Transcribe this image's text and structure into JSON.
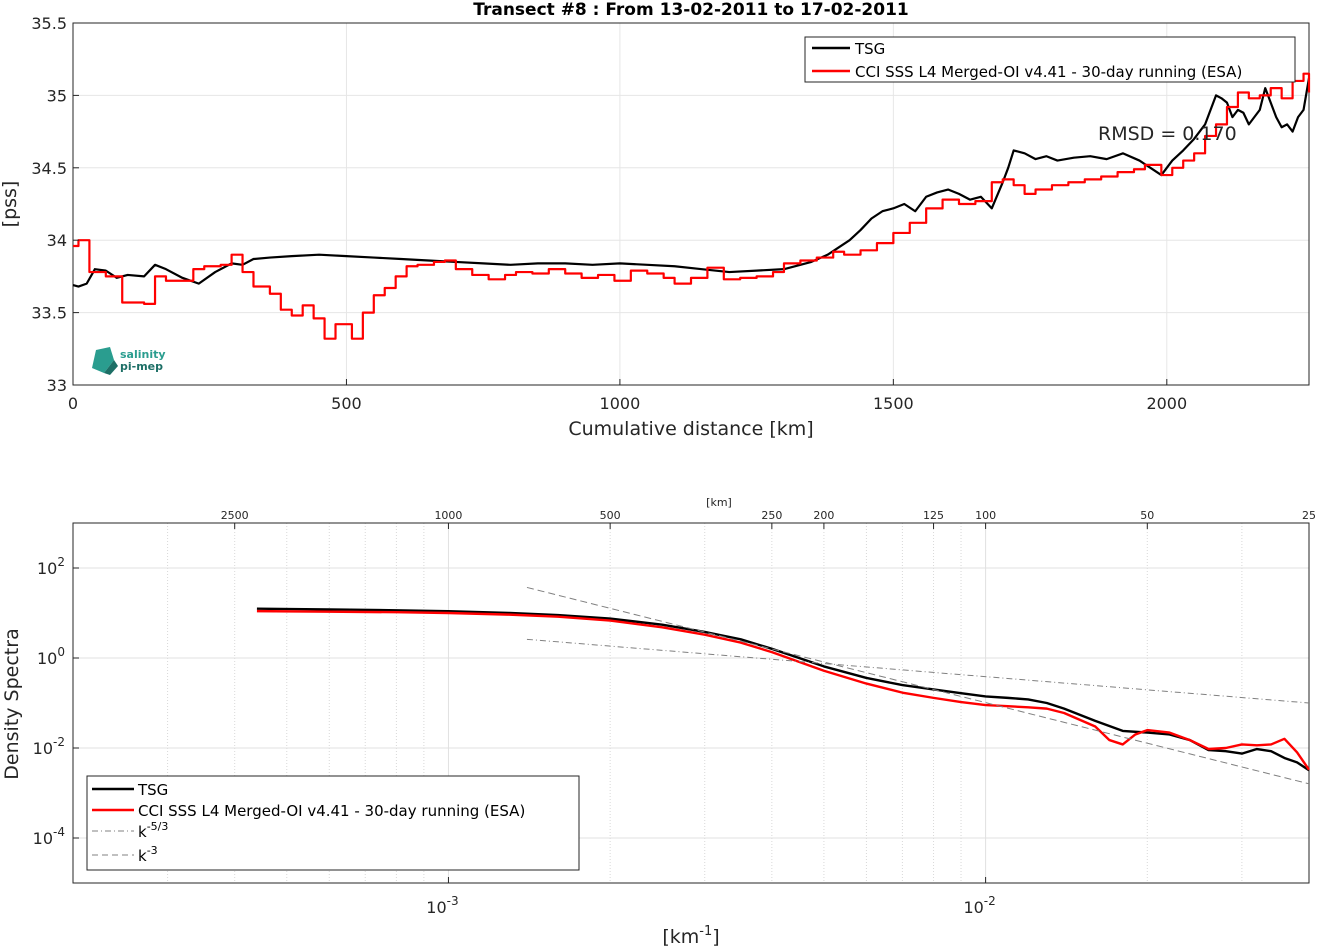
{
  "chart_data": [
    {
      "type": "line",
      "title": "Transect #8 : From 13-02-2011 to 17-02-2011",
      "xlabel": "Cumulative distance [km]",
      "ylabel": "[pss]",
      "xlim": [
        0,
        2260
      ],
      "ylim": [
        33,
        35.5
      ],
      "xticks": [
        "0",
        "500",
        "1000",
        "1500",
        "2000"
      ],
      "yticks": [
        "33",
        "33.5",
        "34",
        "34.5",
        "35",
        "35.5"
      ],
      "grid": true,
      "legend_position": "top-right",
      "annotation": "RMSD = 0.170",
      "logo": "salinity pi-mep",
      "series": [
        {
          "name": "TSG",
          "color": "#000000",
          "x": [
            0,
            10,
            25,
            40,
            60,
            80,
            100,
            130,
            150,
            170,
            200,
            230,
            260,
            290,
            310,
            330,
            360,
            400,
            450,
            500,
            550,
            600,
            650,
            700,
            750,
            800,
            850,
            900,
            950,
            1000,
            1050,
            1100,
            1150,
            1200,
            1250,
            1300,
            1350,
            1380,
            1400,
            1420,
            1440,
            1460,
            1480,
            1500,
            1520,
            1540,
            1560,
            1580,
            1600,
            1620,
            1640,
            1660,
            1680,
            1700,
            1710,
            1720,
            1740,
            1760,
            1780,
            1800,
            1830,
            1860,
            1890,
            1920,
            1950,
            1970,
            1990,
            2010,
            2030,
            2050,
            2070,
            2080,
            2090,
            2100,
            2110,
            2120,
            2130,
            2140,
            2150,
            2160,
            2170,
            2180,
            2190,
            2200,
            2210,
            2220,
            2230,
            2240,
            2250,
            2260
          ],
          "y": [
            33.69,
            33.68,
            33.7,
            33.8,
            33.79,
            33.74,
            33.76,
            33.75,
            33.83,
            33.8,
            33.74,
            33.7,
            33.78,
            33.84,
            33.83,
            33.87,
            33.88,
            33.89,
            33.9,
            33.89,
            33.88,
            33.87,
            33.86,
            33.85,
            33.84,
            33.83,
            33.84,
            33.84,
            33.83,
            33.84,
            33.83,
            33.82,
            33.8,
            33.78,
            33.79,
            33.8,
            33.85,
            33.9,
            33.95,
            34.0,
            34.07,
            34.15,
            34.2,
            34.22,
            34.25,
            34.2,
            34.3,
            34.33,
            34.35,
            34.32,
            34.28,
            34.3,
            34.22,
            34.4,
            34.5,
            34.62,
            34.6,
            34.56,
            34.58,
            34.55,
            34.57,
            34.58,
            34.56,
            34.6,
            34.55,
            34.5,
            34.45,
            34.55,
            34.62,
            34.7,
            34.8,
            34.9,
            35.0,
            34.98,
            34.95,
            34.85,
            34.9,
            34.88,
            34.8,
            34.85,
            34.9,
            35.05,
            34.95,
            34.85,
            34.78,
            34.8,
            34.75,
            34.85,
            34.9,
            35.12
          ]
        },
        {
          "name": "CCI SSS L4 Merged-OI v4.41 - 30-day running (ESA)",
          "color": "#ff0000",
          "x": [
            0,
            10,
            30,
            60,
            90,
            130,
            150,
            170,
            200,
            220,
            240,
            270,
            290,
            310,
            330,
            360,
            380,
            400,
            420,
            440,
            460,
            480,
            510,
            530,
            550,
            570,
            590,
            610,
            630,
            660,
            680,
            700,
            730,
            760,
            790,
            810,
            840,
            870,
            900,
            930,
            960,
            990,
            1020,
            1050,
            1080,
            1100,
            1130,
            1160,
            1190,
            1220,
            1250,
            1280,
            1300,
            1330,
            1360,
            1390,
            1410,
            1440,
            1470,
            1500,
            1530,
            1560,
            1590,
            1620,
            1650,
            1680,
            1700,
            1720,
            1740,
            1760,
            1790,
            1820,
            1850,
            1880,
            1910,
            1940,
            1960,
            1990,
            2010,
            2030,
            2050,
            2070,
            2090,
            2110,
            2130,
            2150,
            2170,
            2190,
            2210,
            2230,
            2250,
            2260
          ],
          "y": [
            33.96,
            34.0,
            33.78,
            33.75,
            33.57,
            33.56,
            33.75,
            33.72,
            33.72,
            33.8,
            33.82,
            33.83,
            33.9,
            33.78,
            33.68,
            33.63,
            33.52,
            33.48,
            33.55,
            33.46,
            33.32,
            33.42,
            33.32,
            33.5,
            33.62,
            33.67,
            33.75,
            33.82,
            33.83,
            33.85,
            33.86,
            33.8,
            33.76,
            33.73,
            33.76,
            33.78,
            33.77,
            33.8,
            33.77,
            33.74,
            33.76,
            33.72,
            33.79,
            33.77,
            33.74,
            33.7,
            33.74,
            33.81,
            33.73,
            33.74,
            33.75,
            33.78,
            33.84,
            33.86,
            33.88,
            33.92,
            33.9,
            33.93,
            33.98,
            34.05,
            34.12,
            34.22,
            34.28,
            34.25,
            34.27,
            34.4,
            34.42,
            34.38,
            34.32,
            34.35,
            34.38,
            34.4,
            34.42,
            34.44,
            34.47,
            34.49,
            34.52,
            34.45,
            34.5,
            34.55,
            34.6,
            34.72,
            34.8,
            34.92,
            35.02,
            34.98,
            35.0,
            35.05,
            34.98,
            35.1,
            35.15,
            35.02
          ]
        }
      ]
    },
    {
      "type": "line",
      "title": "",
      "xlabel": "[km-1]",
      "ylabel": "Density Spectra",
      "xscale": "log",
      "yscale": "log",
      "xlim": [
        0.0002,
        0.04
      ],
      "ylim": [
        1e-05,
        1000
      ],
      "xticks": [
        "10-3",
        "10-2"
      ],
      "yticks": [
        "10-4",
        "10-2",
        "100",
        "102"
      ],
      "top_axis_label": "[km]",
      "top_ticks": [
        {
          "label": "2500",
          "km": 2500
        },
        {
          "label": "1000",
          "km": 1000
        },
        {
          "label": "500",
          "km": 500
        },
        {
          "label": "250",
          "km": 250
        },
        {
          "label": "200",
          "km": 200
        },
        {
          "label": "125",
          "km": 125
        },
        {
          "label": "100",
          "km": 100
        },
        {
          "label": "50",
          "km": 50
        },
        {
          "label": "25",
          "km": 25
        }
      ],
      "grid": true,
      "legend_position": "bottom-left",
      "series": [
        {
          "name": "TSG",
          "color": "#000000",
          "x": [
            0.00044,
            0.0006,
            0.0008,
            0.001,
            0.0013,
            0.0016,
            0.002,
            0.0025,
            0.003,
            0.0035,
            0.004,
            0.005,
            0.006,
            0.007,
            0.008,
            0.009,
            0.01,
            0.011,
            0.012,
            0.013,
            0.014,
            0.016,
            0.018,
            0.02,
            0.022,
            0.024,
            0.026,
            0.028,
            0.03,
            0.032,
            0.034,
            0.036,
            0.038,
            0.04
          ],
          "y": [
            12.5,
            12,
            11.5,
            11,
            10,
            9,
            7.5,
            5.5,
            3.8,
            2.6,
            1.6,
            0.65,
            0.36,
            0.25,
            0.2,
            0.165,
            0.14,
            0.13,
            0.12,
            0.1,
            0.075,
            0.04,
            0.024,
            0.022,
            0.02,
            0.015,
            0.009,
            0.0085,
            0.0075,
            0.0095,
            0.0085,
            0.006,
            0.0048,
            0.0032
          ]
        },
        {
          "name": "CCI SSS L4 Merged-OI v4.41 - 30-day running (ESA)",
          "color": "#ff0000",
          "x": [
            0.00044,
            0.0006,
            0.0008,
            0.001,
            0.0013,
            0.0016,
            0.002,
            0.0025,
            0.003,
            0.0035,
            0.004,
            0.005,
            0.006,
            0.007,
            0.008,
            0.009,
            0.01,
            0.011,
            0.012,
            0.013,
            0.014,
            0.016,
            0.017,
            0.018,
            0.019,
            0.02,
            0.022,
            0.024,
            0.026,
            0.028,
            0.03,
            0.032,
            0.034,
            0.036,
            0.038,
            0.04
          ],
          "y": [
            11,
            10.7,
            10.4,
            10,
            9.2,
            8.3,
            6.8,
            4.8,
            3.3,
            2.2,
            1.35,
            0.52,
            0.27,
            0.17,
            0.13,
            0.105,
            0.09,
            0.085,
            0.08,
            0.075,
            0.06,
            0.03,
            0.015,
            0.012,
            0.02,
            0.025,
            0.022,
            0.015,
            0.0095,
            0.01,
            0.012,
            0.0115,
            0.012,
            0.016,
            0.008,
            0.0033
          ]
        },
        {
          "name": "k-5/3",
          "color": "#808080",
          "style": "dash-dot",
          "x": [
            0.0014,
            0.04
          ],
          "y": [
            2.6,
            0.1
          ]
        },
        {
          "name": "k-3",
          "color": "#808080",
          "style": "dashed",
          "x": [
            0.0014,
            0.04
          ],
          "y": [
            37,
            0.0016
          ]
        }
      ]
    }
  ]
}
